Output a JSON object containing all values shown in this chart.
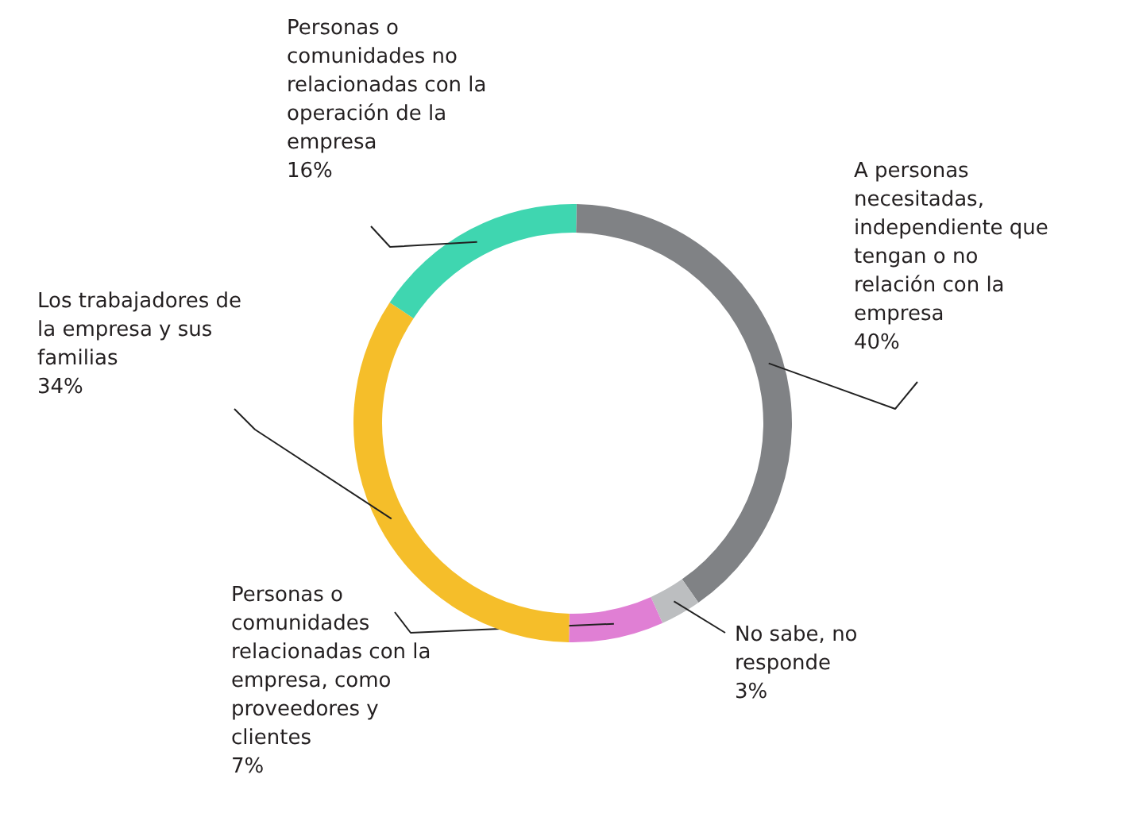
{
  "chart_data": {
    "type": "donut",
    "categories": [
      "A personas necesitadas, independiente que tengan o no relación con la empresa",
      "No sabe, no responde",
      "Personas o comunidades relacionadas con la empresa, como proveedores y clientes",
      "Los trabajadores de la empresa y sus familias",
      "Personas o comunidades no relacionadas con la operación de la empresa"
    ],
    "values": [
      40,
      3,
      7,
      34,
      16
    ],
    "colors": [
      "#808285",
      "#bcbec0",
      "#e07fd4",
      "#f5be2a",
      "#3fd6b0"
    ],
    "value_labels": [
      "40%",
      "3%",
      "7%",
      "34%",
      "16%"
    ]
  }
}
